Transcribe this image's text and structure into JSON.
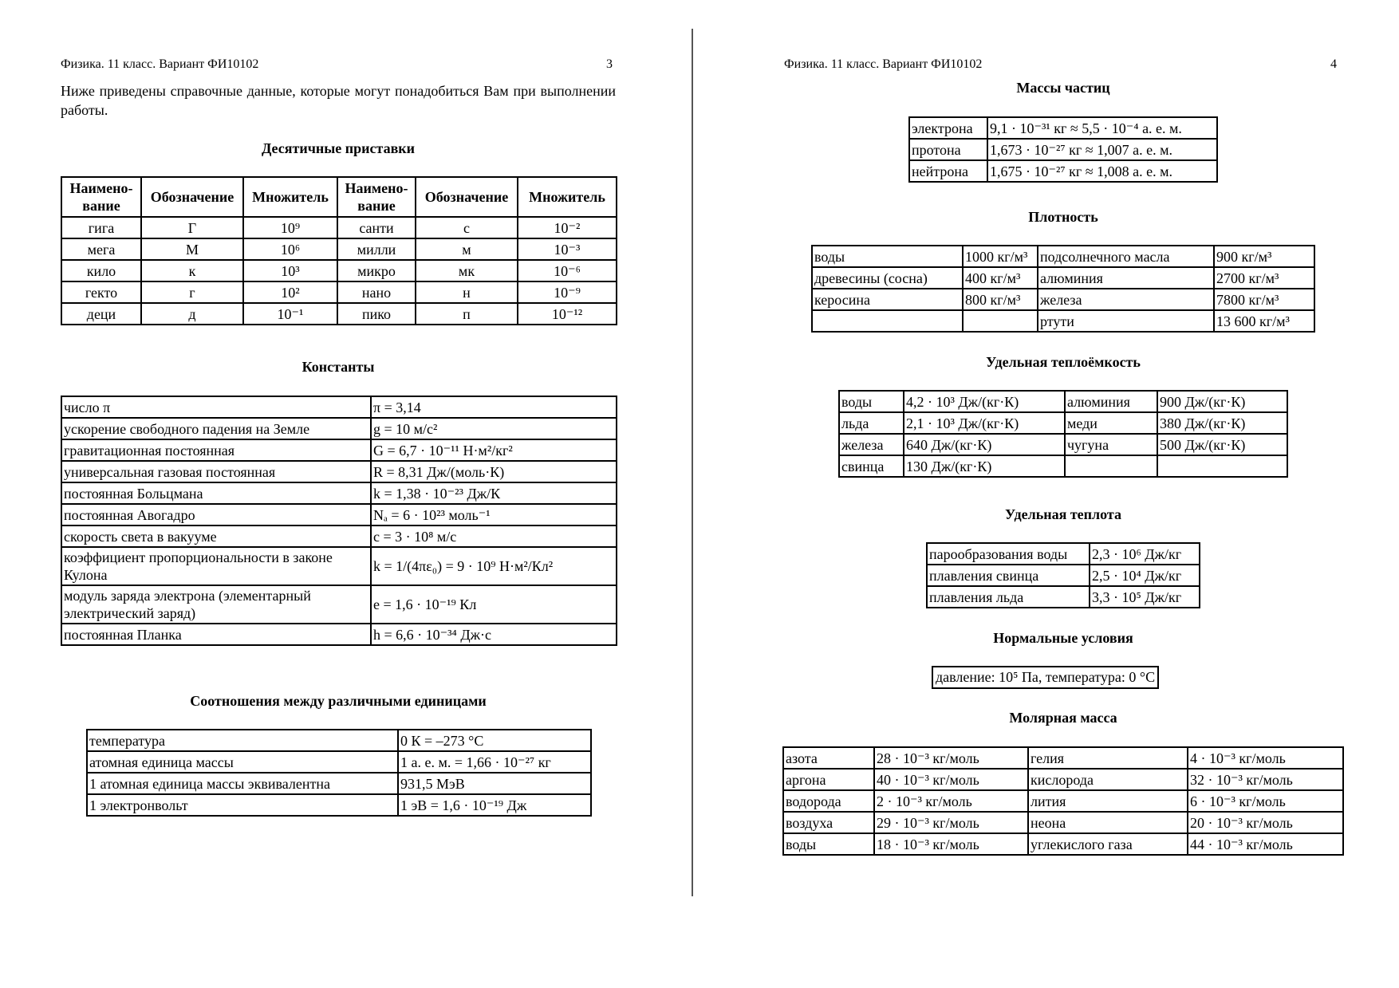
{
  "left_page": {
    "header": "Физика. 11 класс. Вариант ФИ10102",
    "page_number": "3",
    "intro": "Ниже приведены справочные данные, которые могут понадобиться Вам при выполнении работы.",
    "prefixes": {
      "title": "Десятичные приставки",
      "headers": [
        "Наимено-вание",
        "Обозначение",
        "Множитель",
        "Наимено-вание",
        "Обозначение",
        "Множитель"
      ],
      "rows": [
        [
          "гига",
          "Г",
          "10⁹",
          "санти",
          "с",
          "10⁻²"
        ],
        [
          "мега",
          "М",
          "10⁶",
          "милли",
          "м",
          "10⁻³"
        ],
        [
          "кило",
          "к",
          "10³",
          "микро",
          "мк",
          "10⁻⁶"
        ],
        [
          "гекто",
          "г",
          "10²",
          "нано",
          "н",
          "10⁻⁹"
        ],
        [
          "деци",
          "д",
          "10⁻¹",
          "пико",
          "п",
          "10⁻¹²"
        ]
      ]
    },
    "constants": {
      "title": "Константы",
      "rows": [
        [
          "число π",
          "π = 3,14"
        ],
        [
          "ускорение свободного падения на Земле",
          "g = 10 м/с²"
        ],
        [
          "гравитационная постоянная",
          "G = 6,7 · 10⁻¹¹ Н·м²/кг²"
        ],
        [
          "универсальная газовая постоянная",
          "R = 8,31 Дж/(моль·К)"
        ],
        [
          "постоянная Больцмана",
          "k = 1,38 · 10⁻²³ Дж/К"
        ],
        [
          "постоянная Авогадро",
          "Nₐ = 6 · 10²³ моль⁻¹"
        ],
        [
          "скорость света в вакууме",
          "c = 3 · 10⁸ м/с"
        ],
        [
          "коэффициент пропорциональности в законе Кулона",
          "k = 1/(4πε₀) = 9 · 10⁹ Н·м²/Кл²"
        ],
        [
          "модуль заряда электрона (элементарный электрический заряд)",
          "e = 1,6 · 10⁻¹⁹ Кл"
        ],
        [
          "постоянная Планка",
          "h = 6,6 · 10⁻³⁴ Дж·с"
        ]
      ]
    },
    "units": {
      "title": "Соотношения между различными единицами",
      "rows": [
        [
          "температура",
          "0 К = –273 °С"
        ],
        [
          "атомная единица массы",
          "1 а. е. м. = 1,66 · 10⁻²⁷ кг"
        ],
        [
          "1 атомная единица массы эквивалентна",
          "931,5 МэВ"
        ],
        [
          "1 электронвольт",
          "1 эВ = 1,6 · 10⁻¹⁹ Дж"
        ]
      ]
    }
  },
  "right_page": {
    "header": "Физика. 11 класс. Вариант ФИ10102",
    "page_number": "4",
    "masses": {
      "title": "Массы частиц",
      "rows": [
        [
          "электрона",
          "9,1 · 10⁻³¹ кг ≈ 5,5 · 10⁻⁴ а. е. м."
        ],
        [
          "протона",
          "1,673 · 10⁻²⁷ кг ≈ 1,007 а. е. м."
        ],
        [
          "нейтрона",
          "1,675 · 10⁻²⁷ кг ≈ 1,008 а. е. м."
        ]
      ]
    },
    "density": {
      "title": "Плотность",
      "rows": [
        [
          "воды",
          "1000 кг/м³",
          "подсолнечного масла",
          "900 кг/м³"
        ],
        [
          "древесины (сосна)",
          "400 кг/м³",
          "алюминия",
          "2700 кг/м³"
        ],
        [
          "керосина",
          "800 кг/м³",
          "железа",
          "7800 кг/м³"
        ],
        [
          "",
          "",
          "ртути",
          "13 600 кг/м³"
        ]
      ]
    },
    "heat_capacity": {
      "title": "Удельная теплоёмкость",
      "rows": [
        [
          "воды",
          "4,2 · 10³ Дж/(кг·К)",
          "алюминия",
          "900 Дж/(кг·К)"
        ],
        [
          "льда",
          "2,1 · 10³ Дж/(кг·К)",
          "меди",
          "380 Дж/(кг·К)"
        ],
        [
          "железа",
          "640 Дж/(кг·К)",
          "чугуна",
          "500 Дж/(кг·К)"
        ],
        [
          "свинца",
          "130 Дж/(кг·К)",
          "",
          ""
        ]
      ]
    },
    "specific_heat": {
      "title": "Удельная теплота",
      "rows": [
        [
          "парообразования воды",
          "2,3 · 10⁶ Дж/кг"
        ],
        [
          "плавления свинца",
          "2,5 · 10⁴ Дж/кг"
        ],
        [
          "плавления льда",
          "3,3 · 10⁵ Дж/кг"
        ]
      ]
    },
    "normal_conditions": {
      "title": "Нормальные условия",
      "text": "давление: 10⁵ Па, температура: 0 °С"
    },
    "molar_mass": {
      "title": "Молярная масса",
      "rows": [
        [
          "азота",
          "28 · 10⁻³ кг/моль",
          "гелия",
          "4 · 10⁻³ кг/моль"
        ],
        [
          "аргона",
          "40 · 10⁻³ кг/моль",
          "кислорода",
          "32 · 10⁻³ кг/моль"
        ],
        [
          "водорода",
          "2 · 10⁻³ кг/моль",
          "лития",
          "6 · 10⁻³ кг/моль"
        ],
        [
          "воздуха",
          "29 · 10⁻³ кг/моль",
          "неона",
          "20 · 10⁻³ кг/моль"
        ],
        [
          "воды",
          "18 · 10⁻³ кг/моль",
          "углекислого газа",
          "44 · 10⁻³ кг/моль"
        ]
      ]
    }
  }
}
